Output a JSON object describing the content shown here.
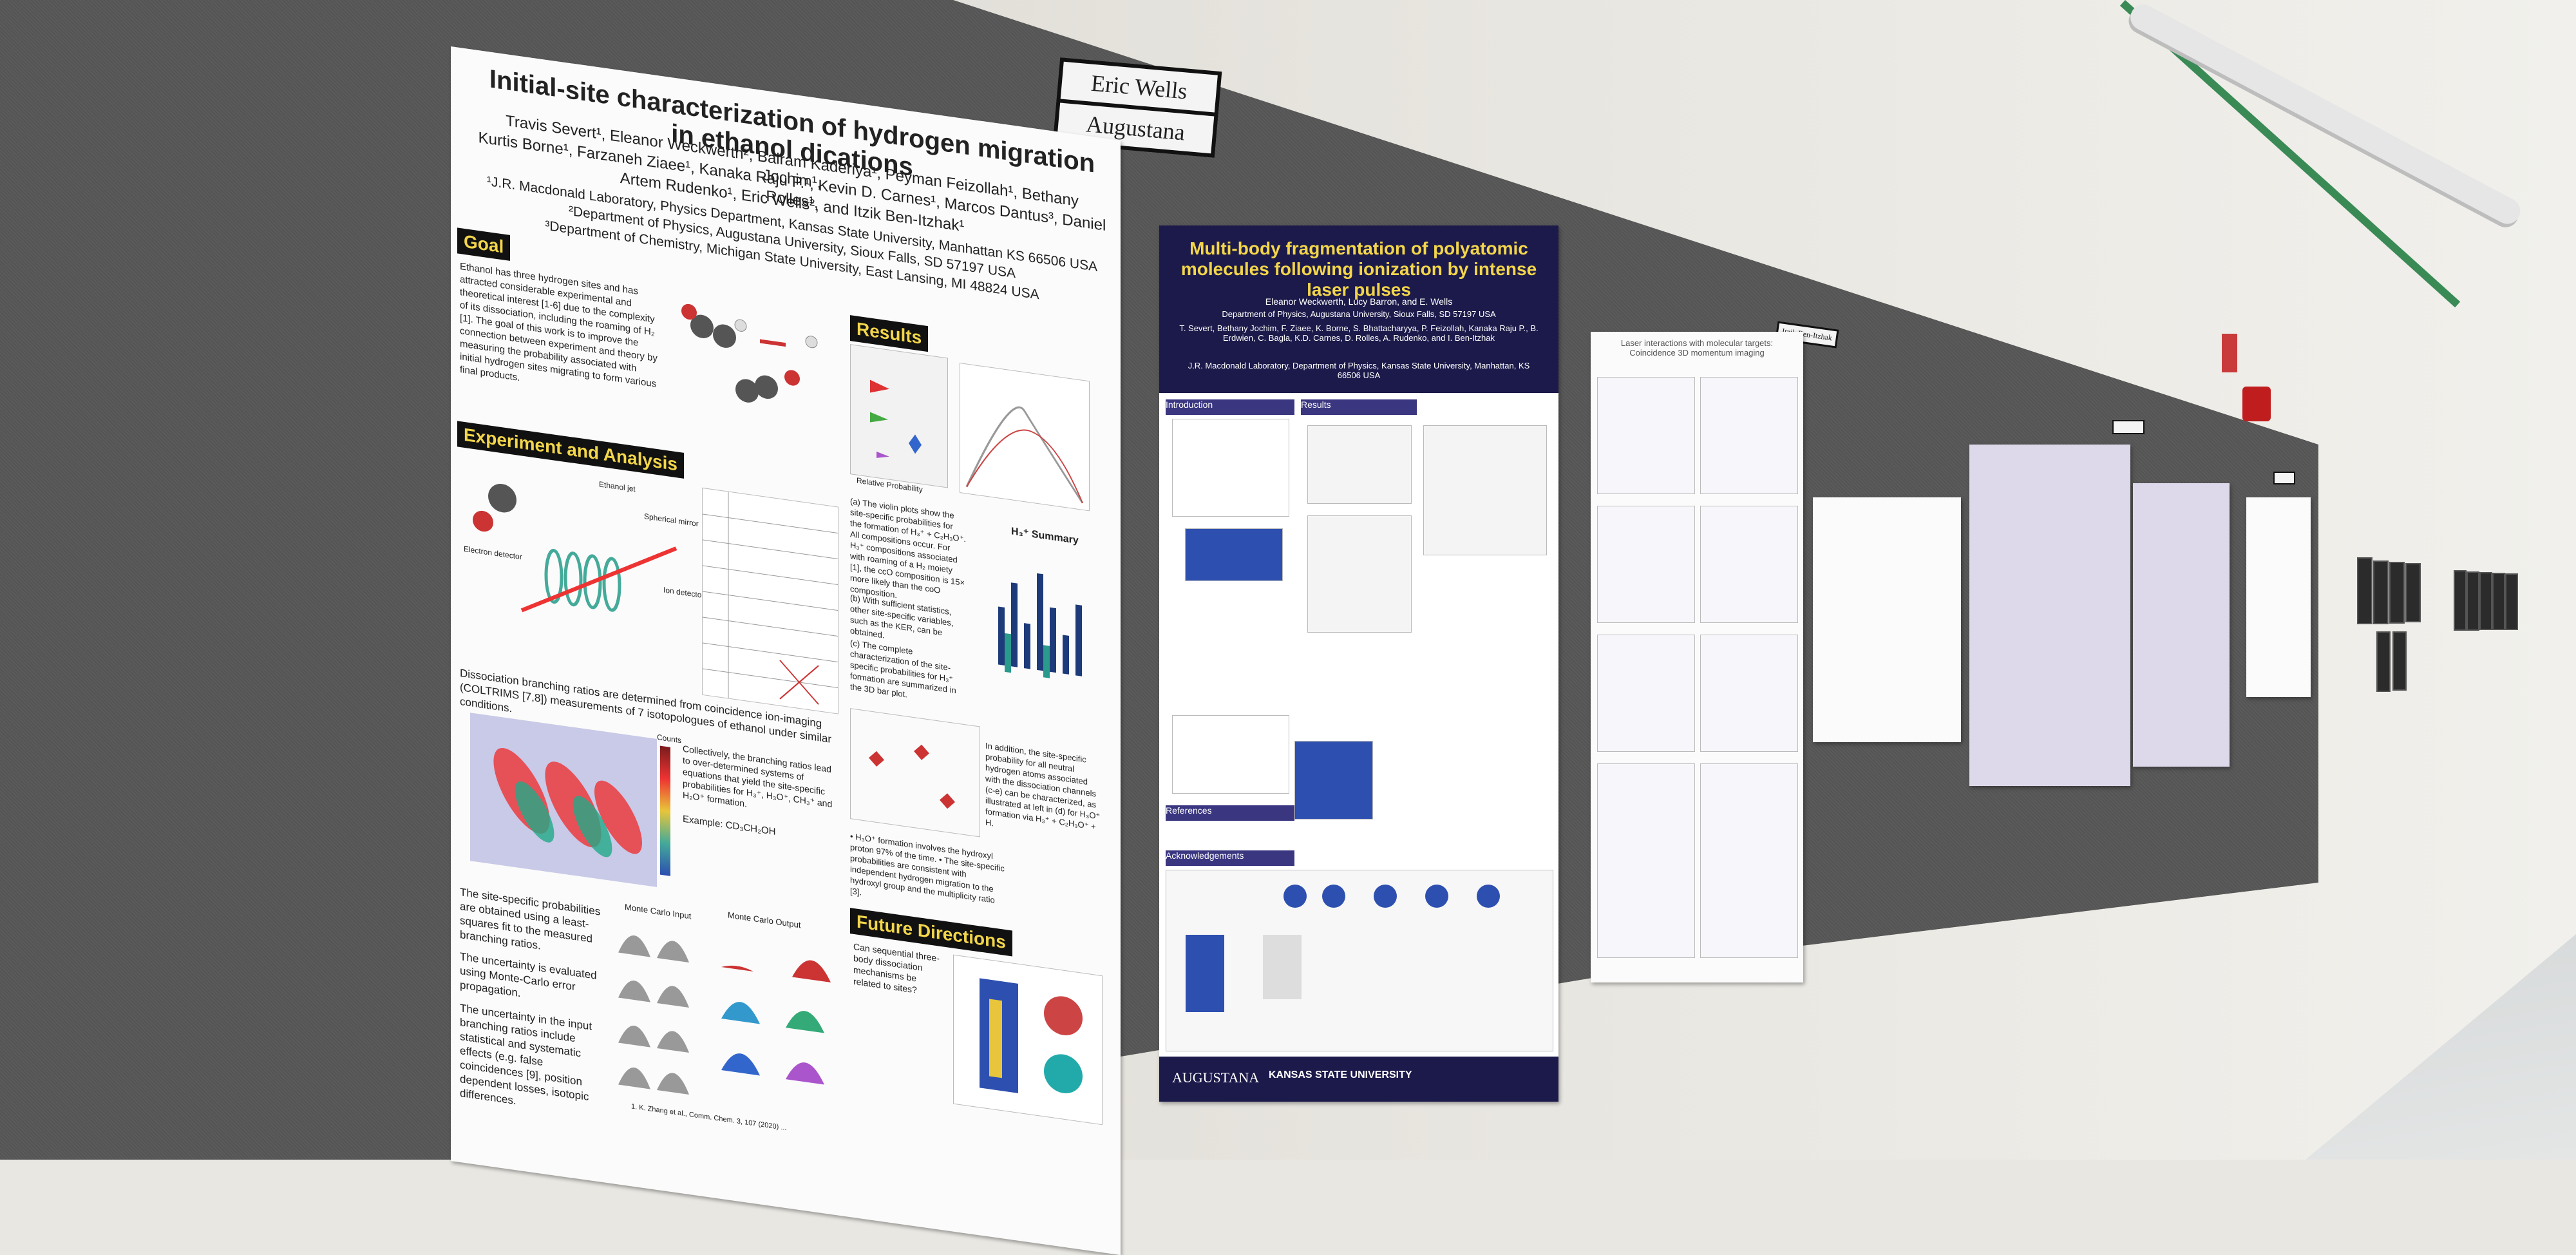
{
  "scene": {
    "nameplates": {
      "name": "Eric Wells",
      "school": "Augustana",
      "small": "Itzik Ben-Itzhak"
    }
  },
  "poster_main": {
    "title": "Initial-site characterization of hydrogen migration in ethanol dications",
    "authors_1": "Travis Severt¹, Eleanor Weckwerth², Balram Kaderiya¹, Peyman Feizollah¹, Bethany Jochim¹,",
    "authors_2": "Kurtis Borne¹, Farzaneh Ziaee¹, Kanaka Raju P.¹, Kevin D. Carnes¹, Marcos Dantus³, Daniel Rolles¹,",
    "authors_3": "Artem Rudenko¹, Eric Wells², and Itzik Ben-Itzhak¹",
    "aff_1": "¹J.R. Macdonald Laboratory, Physics Department, Kansas State University, Manhattan KS 66506 USA",
    "aff_2": "²Department of Physics, Augustana University, Sioux Falls, SD 57197 USA",
    "aff_3": "³Department of Chemistry, Michigan State University, East Lansing, MI 48824 USA",
    "goal_head": "Goal",
    "goal_text": "Ethanol has three hydrogen sites and has attracted considerable experimental and theoretical interest [1-6] due to the complexity of its dissociation, including the roaming of H₂ [1]. The goal of this work is to improve the connection between experiment and theory by measuring the probability associated with initial hydrogen sites migrating to form various final products.",
    "results_head": "Results",
    "exp_head": "Experiment and Analysis",
    "exp_labels": [
      "Ethanol jet",
      "Spherical mirror",
      "Electron detector",
      "Ion detector"
    ],
    "exp_text": "Dissociation branching ratios are determined from coincidence ion-imaging (COLTRIMS [7,8]) measurements of 7 isotopologues of ethanol under similar conditions.",
    "branching_text": "Collectively, the branching ratios lead to over-determined systems of equations that yield the site-specific probabilities for H₃⁺, H₃O⁺, CH₃⁺ and H₂O⁺ formation.",
    "example": "Example: CD₃CH₂OH",
    "site_text": "The site-specific probabilities are obtained using a least-squares fit to the measured branching ratios.",
    "uncert_text": "The uncertainty is evaluated using Monte-Carlo error propagation.",
    "uncert2_text": "The uncertainty in the input branching ratios include statistical and systematic effects (e.g. false coincidences [9], position dependent losses, isotopic differences.",
    "mc_input": "Monte Carlo Input",
    "mc_output": "Monte Carlo Output",
    "counts": "Counts",
    "relprob": "Relative Probability",
    "violin_text": "(a) The violin plots show the site-specific probabilities for the formation of H₃⁺ + C₂H₃O⁺. All compositions occur. For H₃⁺ compositions associated with roaming of a H₂ moiety [1], the ccO composition is 15× more likely than the coO composition.",
    "b_text": "(b) With sufficient statistics, other site-specific variables, such as the KER, can be obtained.",
    "c_text": "(c) The complete characterization of the site-specific probabilities for H₃⁺ formation are summarized in the 3D bar plot.",
    "summary": "H₃⁺ Summary",
    "h3o_text": "In addition, the site-specific probability for all neutral hydrogen atoms associated with the dissociation channels (c-e) can be characterized, as illustrated at left in (d) for H₃O⁺ formation via H₃⁺ + C₂H₃O⁺ + H.",
    "bullets": "• H₃O⁺ formation involves the hydroxyl proton 97% of the time. • The site-specific probabilities are consistent with independent hydrogen migration to the hydroxyl group and the multiplicity ratio [3].",
    "future_head": "Future Directions",
    "future_text": "Can sequential three-body dissociation mechanisms be related to sites?",
    "ref_text": "1. K. Zhang et al., Comm. Chem. 3, 107 (2020) ..."
  },
  "poster_second": {
    "title": "Multi-body fragmentation of polyatomic molecules following ionization by intense laser pulses",
    "authors": "Eleanor Weckwerth, Lucy Barron, and E. Wells",
    "affil": "Department of Physics, Augustana University, Sioux Falls, SD 57197 USA",
    "authors2": "T. Severt, Bethany Jochim, F. Ziaee, K. Borne, S. Bhattacharyya, P. Feizollah, Kanaka Raju P., B. Erdwien, C. Bagla, K.D. Carnes, D. Rolles, A. Rudenko, and I. Ben-Itzhak",
    "affil2": "J.R. Macdonald Laboratory, Department of Physics, Kansas State University, Manhattan, KS 66506 USA",
    "sections": [
      "Introduction",
      "Results",
      "References",
      "Acknowledgements"
    ],
    "logos": [
      "AUGUSTANA",
      "KANSAS STATE UNIVERSITY"
    ]
  },
  "poster_third": {
    "title": "Laser interactions with molecular targets: Coincidence 3D momentum imaging"
  },
  "colors": {
    "poster_navy": "#1c1a4a",
    "title_yellow": "#f3d64a",
    "board_gray": "#575757",
    "accent_red": "#c01e1e"
  }
}
